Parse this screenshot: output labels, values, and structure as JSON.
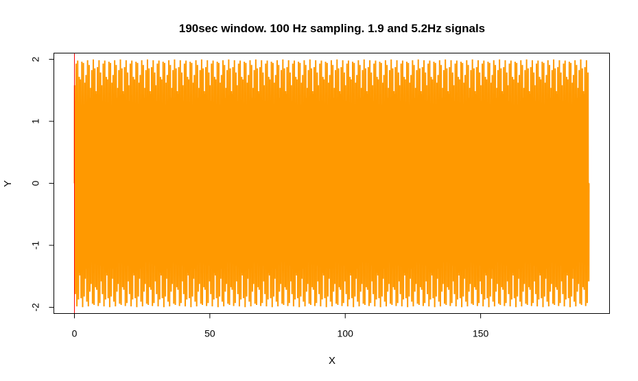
{
  "chart_data": {
    "type": "line",
    "title": "190sec window.  100 Hz sampling.  1.9 and 5.2Hz signals",
    "xlabel": "X",
    "ylabel": "Y",
    "xlim": [
      -7.6,
      197.6
    ],
    "ylim": [
      -2.1,
      2.1
    ],
    "x_ticks": [
      0,
      50,
      100,
      150
    ],
    "x_tick_labels": [
      "0",
      "50",
      "100",
      "150"
    ],
    "y_ticks": [
      -2,
      -1,
      0,
      1,
      2
    ],
    "y_tick_labels": [
      "-2",
      "-1",
      "0",
      "1",
      "2"
    ],
    "grid": false,
    "series": [
      {
        "description": "sum of sines",
        "color": "#ff9900",
        "components_hz": [
          1.9,
          5.2
        ],
        "amplitude_each": 1,
        "duration_s": 190,
        "sample_rate_hz": 100
      }
    ],
    "vline": {
      "x": 0,
      "color": "#ff0000"
    }
  }
}
